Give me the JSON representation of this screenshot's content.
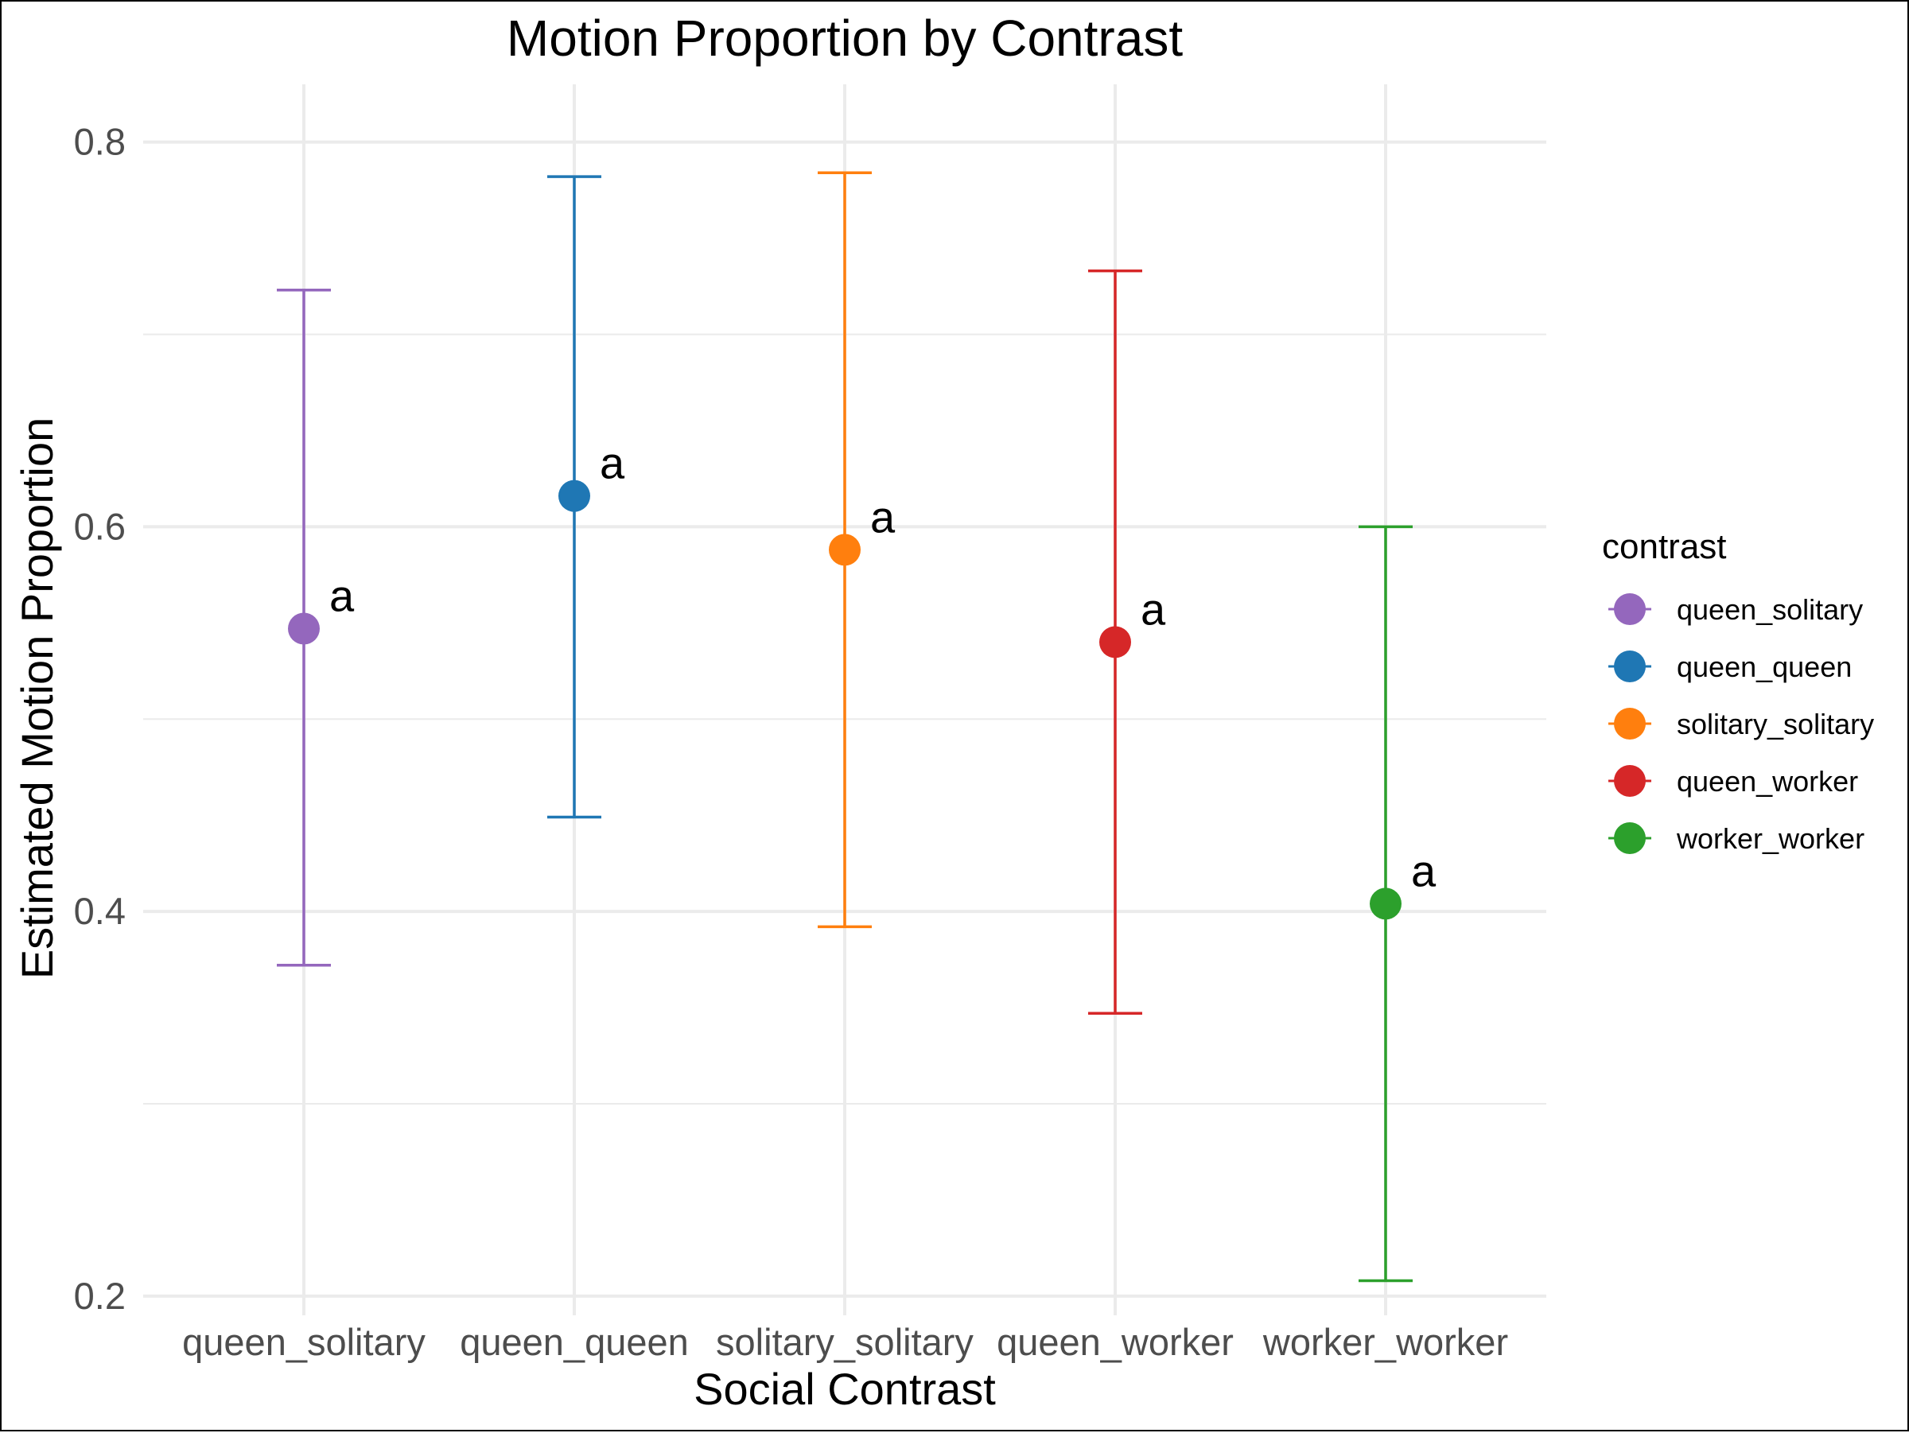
{
  "chart_data": {
    "type": "scatter",
    "title": "Motion Proportion by Contrast",
    "xlabel": "Social Contrast",
    "ylabel": "Estimated Motion Proportion",
    "ylim": [
      0.19,
      0.83
    ],
    "yticks": [
      0.2,
      0.4,
      0.6,
      0.8
    ],
    "ytick_labels": [
      "0.2",
      "0.4",
      "0.6",
      "0.8"
    ],
    "grid": true,
    "categories": [
      "queen_solitary",
      "queen_queen",
      "solitary_solitary",
      "queen_worker",
      "worker_worker"
    ],
    "series": [
      {
        "category": "queen_solitary",
        "estimate": 0.547,
        "lower": 0.372,
        "upper": 0.723,
        "letter": "a",
        "color": "#9467bd"
      },
      {
        "category": "queen_queen",
        "estimate": 0.616,
        "lower": 0.449,
        "upper": 0.782,
        "letter": "a",
        "color": "#1f77b4"
      },
      {
        "category": "solitary_solitary",
        "estimate": 0.588,
        "lower": 0.392,
        "upper": 0.784,
        "letter": "a",
        "color": "#ff7f0e"
      },
      {
        "category": "queen_worker",
        "estimate": 0.54,
        "lower": 0.347,
        "upper": 0.733,
        "letter": "a",
        "color": "#d62728"
      },
      {
        "category": "worker_worker",
        "estimate": 0.404,
        "lower": 0.208,
        "upper": 0.6,
        "letter": "a",
        "color": "#2ca02c"
      }
    ],
    "legend": {
      "title": "contrast",
      "position": "right",
      "items": [
        {
          "label": "queen_solitary",
          "color": "#9467bd"
        },
        {
          "label": "queen_queen",
          "color": "#1f77b4"
        },
        {
          "label": "solitary_solitary",
          "color": "#ff7f0e"
        },
        {
          "label": "queen_worker",
          "color": "#d62728"
        },
        {
          "label": "worker_worker",
          "color": "#2ca02c"
        }
      ]
    }
  }
}
